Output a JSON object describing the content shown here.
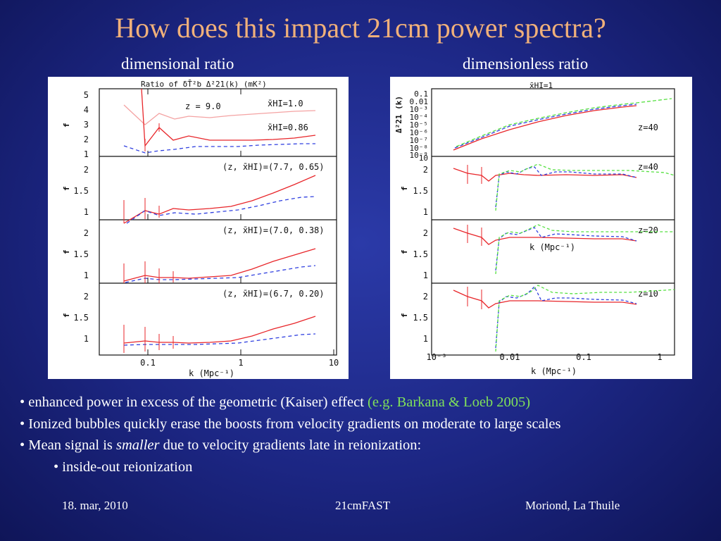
{
  "slide": {
    "title": "How does this impact 21cm power spectra?",
    "left_heading": "dimensional ratio",
    "right_heading": "dimensionless ratio"
  },
  "colors": {
    "red": "#e8262a",
    "pink": "#f4a3a3",
    "blue": "#3040e0",
    "green": "#55e040",
    "title": "#f0b07a"
  },
  "left_figure": {
    "header": "Ratio of δT̄²b Δ²21(k) (mK²)",
    "xlabel": "k (Mpc⁻¹)",
    "ylabel": "f",
    "x_ticks": [
      "0.1",
      "1",
      "10"
    ],
    "top_y_ticks": [
      "1",
      "2",
      "3",
      "4",
      "5"
    ],
    "y_ticks": [
      "1",
      "1.5",
      "2"
    ],
    "labels": {
      "p1_z": "z = 9.0",
      "p1_xhi_a": "x̄HI=1.0",
      "p1_xhi_b": "x̄HI=0.86",
      "p2": "(z, x̄HI)=(7.7, 0.65)",
      "p3": "(z, x̄HI)=(7.0, 0.38)",
      "p4": "(z, x̄HI)=(6.7, 0.20)"
    }
  },
  "right_figure": {
    "header": "x̄HI=1",
    "xlabel": "k (Mpc⁻¹)",
    "inner_xlabel": "k (Mpc⁻¹)",
    "top_ylabel": "Δ²21 (k)",
    "ylabel": "f",
    "x_ticks": [
      "10⁻³",
      "0.01",
      "0.1",
      "1"
    ],
    "top_y_ticks": [
      "0.1",
      "0.01",
      "10⁻³",
      "10⁻⁴",
      "10⁻⁵",
      "10⁻⁶",
      "10⁻⁷",
      "10⁻⁸",
      "10⁻⁹",
      "10"
    ],
    "y_ticks": [
      "1",
      "1.5",
      "2"
    ],
    "labels": {
      "p1": "z=40",
      "p2": "z=40",
      "p3": "z=20",
      "p4": "z=10"
    }
  },
  "bullets": {
    "b1_text": "• enhanced power in excess of the geometric (Kaiser) effect ",
    "b1_cite": "(e.g. Barkana & Loeb 2005)",
    "b2": "• Ionized bubbles quickly erase the boosts from velocity gradients on moderate to large scales",
    "b3_pre": "• Mean signal is ",
    "b3_em": "smaller",
    "b3_post": " due to velocity gradients late in reionization:",
    "b4": "• inside-out reionization"
  },
  "footer": {
    "date": "18. mar, 2010",
    "center": "21cmFAST",
    "right": "Moriond, La Thuile"
  }
}
